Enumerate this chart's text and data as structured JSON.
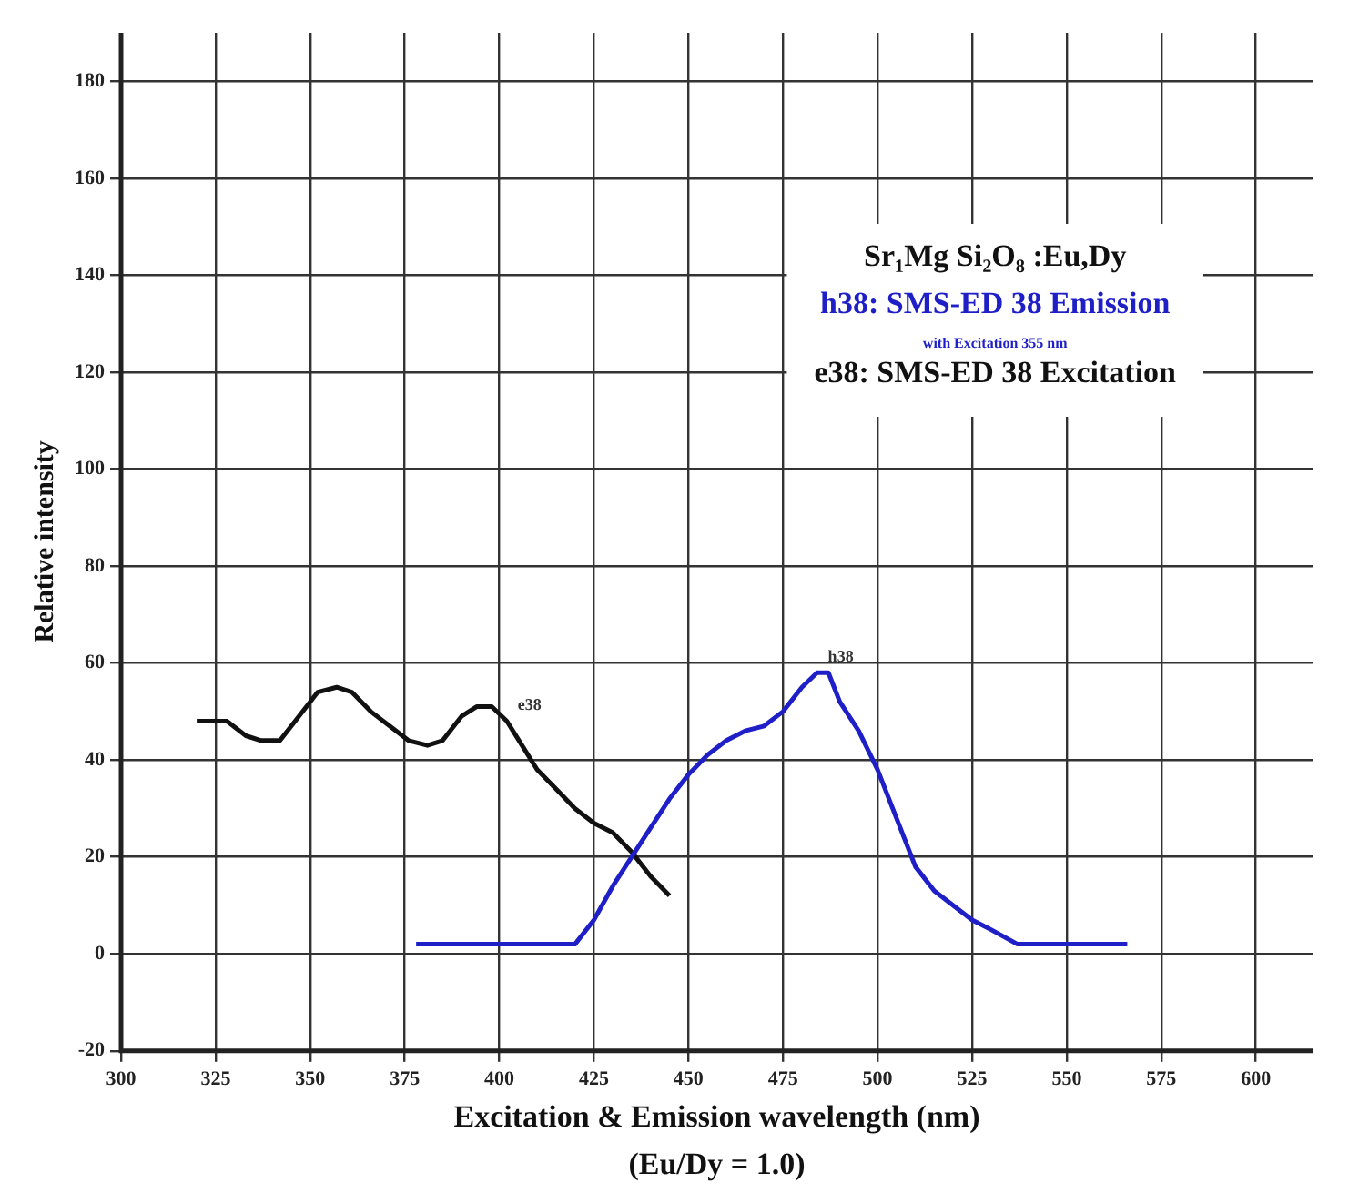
{
  "chart_data": {
    "type": "line",
    "xlabel": "Excitation & Emission wavelength (nm)",
    "ylabel": "Relative intensity",
    "legend_title": "Sr₁Mg Si₂O₈ :Eu,Dy",
    "legend": "top right",
    "grid": true,
    "marker": "none",
    "line_style": "solid",
    "xlim": [
      300,
      615
    ],
    "xticks": [
      300,
      325,
      350,
      375,
      400,
      425,
      450,
      475,
      500,
      525,
      550,
      575,
      600
    ],
    "ylim": [
      -20,
      190
    ],
    "yticks": [
      -20,
      0,
      20,
      40,
      60,
      80,
      100,
      120,
      140,
      160,
      180
    ],
    "series": [
      {
        "name": "h38: SMS-ED 38 Emission",
        "color": "#1f1fc8",
        "x": [
          378,
          420,
          425,
          430,
          435,
          440,
          445,
          450,
          455,
          460,
          465,
          470,
          475,
          480,
          484,
          487,
          490,
          495,
          500,
          505,
          510,
          515,
          520,
          525,
          530,
          537,
          566
        ],
        "values": [
          2,
          2,
          7,
          14,
          20,
          26,
          32,
          37,
          41,
          44,
          46,
          47,
          50,
          55,
          58,
          58,
          52,
          46,
          38,
          28,
          18,
          13,
          10,
          7,
          5,
          2,
          2
        ]
      },
      {
        "name": "e38: SMS-ED 38 Excitation",
        "color": "#111111",
        "x": [
          320,
          328,
          333,
          337,
          342,
          347,
          352,
          357,
          361,
          366,
          371,
          376,
          381,
          385,
          390,
          394,
          398,
          402,
          406,
          410,
          415,
          420,
          425,
          430,
          435,
          440,
          445
        ],
        "values": [
          48,
          48,
          45,
          44,
          44,
          49,
          54,
          55,
          54,
          50,
          47,
          44,
          43,
          44,
          49,
          51,
          51,
          48,
          43,
          38,
          34,
          30,
          27,
          25,
          21,
          16,
          12
        ]
      }
    ],
    "annotations": [
      "with Excitation 355 nm",
      "(Eu/Dy = 1.0)",
      {
        "text": "h38",
        "x": 484,
        "y": 58
      },
      {
        "text": "e38",
        "x": 402,
        "y": 48
      }
    ]
  }
}
